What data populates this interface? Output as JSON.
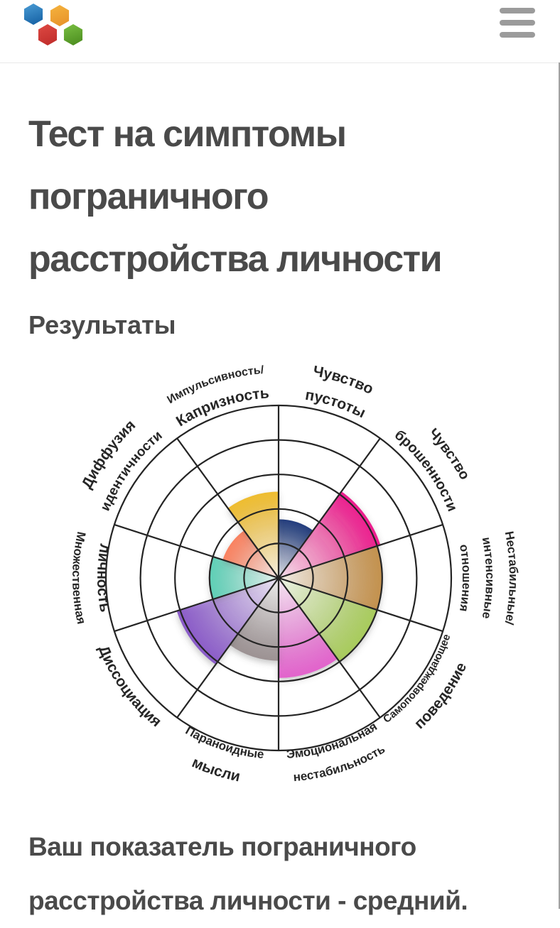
{
  "header": {
    "menu_label": "Меню",
    "logo_alt": "hexagon-logo"
  },
  "page": {
    "title": "Тест на симптомы пограничного расстройства личности",
    "title_lines": [
      "Тест на симптомы",
      "пограничного",
      "расстройства личности"
    ],
    "subtitle": "Результаты",
    "result_text": "Ваш показатель пограничного расстройства личности - средний.",
    "result_lines": [
      "Ваш показатель пограничного",
      "расстройства личности - средний."
    ]
  },
  "colors": {
    "text": "#4a4a4a",
    "divider": "#e8e8e8",
    "hamburger": "#9b9b9b",
    "scrollbar": "#a2a2a2",
    "chart_line": "#242424",
    "chart_label": "#262626"
  },
  "logo": {
    "hexes": [
      {
        "name": "blue",
        "top": "#4da0d8",
        "bottom": "#1a66a8"
      },
      {
        "name": "orange",
        "top": "#f6b53f",
        "bottom": "#e8952b"
      },
      {
        "name": "red",
        "top": "#e04b44",
        "bottom": "#c22f2d"
      },
      {
        "name": "green",
        "top": "#7cc244",
        "bottom": "#4f9122"
      }
    ]
  },
  "chart_data": {
    "type": "polar_wheel",
    "title": "Симптомы пограничного расстройства личности",
    "rings": 5,
    "scale": {
      "min": 0,
      "max": 5
    },
    "grid_on": true,
    "sectors": [
      {
        "name": "Чувство пустоты",
        "value": 1.7,
        "color": "#203c7c",
        "angle": 18,
        "flipped": false,
        "labels": [
          {
            "text": "Чувство",
            "r": 289,
            "size": 21,
            "weight": 700
          },
          {
            "text": "пустоты",
            "r": 254,
            "size": 21,
            "weight": 700
          }
        ]
      },
      {
        "name": "Чувство брошенности",
        "value": 3.1,
        "color": "#ec1b8d",
        "angle": 54,
        "flipped": false,
        "labels": [
          {
            "text": "Чувство",
            "r": 292,
            "size": 20,
            "weight": 700
          },
          {
            "text": "брошенности",
            "r": 257,
            "size": 20,
            "weight": 700
          }
        ]
      },
      {
        "name": "Нестабильные/интенсивные отношения",
        "value": 3.0,
        "color": "#c3914d",
        "angle": 90,
        "flipped": false,
        "labels": [
          {
            "text": "Нестабильные/",
            "r": 325,
            "size": 17,
            "weight": 700
          },
          {
            "text": "интенсивные",
            "r": 292,
            "size": 17,
            "weight": 700
          },
          {
            "text": "отношения",
            "r": 259,
            "size": 17,
            "weight": 700
          }
        ]
      },
      {
        "name": "Самоповреждающее поведение",
        "value": 3.0,
        "color": "#a8cb5c",
        "angle": 126,
        "flipped": true,
        "labels": [
          {
            "text": "поведение",
            "r": 292,
            "size": 21,
            "weight": 700
          },
          {
            "text": "Самоповреждающее",
            "r": 255,
            "size": 15,
            "weight": 600
          }
        ]
      },
      {
        "name": "Эмоциональная нестабильность",
        "value": 2.9,
        "color": "#e263cc",
        "angle": 162,
        "flipped": true,
        "labels": [
          {
            "text": "нестабильность",
            "r": 287,
            "size": 17,
            "weight": 600
          },
          {
            "text": "Эмоциональная",
            "r": 254,
            "size": 17,
            "weight": 600
          }
        ]
      },
      {
        "name": "Параноидные мысли",
        "value": 2.4,
        "color": "#9c9293",
        "angle": 198,
        "flipped": true,
        "labels": [
          {
            "text": "мысли",
            "r": 292,
            "size": 21,
            "weight": 700
          },
          {
            "text": "Параноидные",
            "r": 255,
            "size": 17,
            "weight": 600
          }
        ]
      },
      {
        "name": "Диссоциация",
        "value": 3.1,
        "color": "#8a5ac8",
        "angle": 234,
        "flipped": true,
        "labels": [
          {
            "text": "Диссоциация",
            "r": 272,
            "size": 21,
            "weight": 700
          }
        ]
      },
      {
        "name": "Множественная личность",
        "value": 2.0,
        "color": "#5ecfb6",
        "angle": 270,
        "flipped": true,
        "labels": [
          {
            "text": "Множественная",
            "r": 290,
            "size": 17,
            "weight": 600
          },
          {
            "text": "личность",
            "r": 255,
            "size": 21,
            "weight": 700
          }
        ]
      },
      {
        "name": "Диффузия идентичности",
        "value": 1.7,
        "color": "#f9815f",
        "angle": 306,
        "flipped": false,
        "labels": [
          {
            "text": "Диффузия",
            "r": 293,
            "size": 21,
            "weight": 700
          },
          {
            "text": "идентичности",
            "r": 257,
            "size": 19,
            "weight": 700
          }
        ]
      },
      {
        "name": "Импульсивность/Капризность",
        "value": 2.5,
        "color": "#eebc2e",
        "angle": 342,
        "flipped": false,
        "labels": [
          {
            "text": "Импульсивность/",
            "r": 289,
            "size": 16,
            "weight": 600
          },
          {
            "text": "Капризность",
            "r": 254,
            "size": 21,
            "weight": 700
          }
        ]
      }
    ]
  }
}
